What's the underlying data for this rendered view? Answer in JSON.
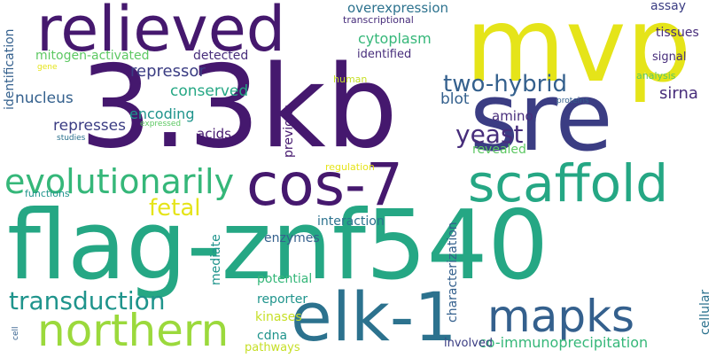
{
  "words": {
    "mvp": "mvp",
    "relieved": "relieved",
    "kb": "3.3kb",
    "sre": "sre",
    "cos7": "cos-7",
    "scaffold": "scaffold",
    "evolutionarily": "evolutionarily",
    "flagznf540": "flag-znf540",
    "elk1": "elk-1",
    "mapks": "mapks",
    "northern": "northern",
    "transduction": "transduction",
    "fetal": "fetal",
    "yeast": "yeast",
    "twohybrid": "two-hybrid",
    "cytoplasm": "cytoplasm",
    "repressor": "repressor",
    "conserved": "conserved",
    "encoding": "encoding",
    "nucleus": "nucleus",
    "represses": "represses",
    "acids": "acids",
    "amino": "amino",
    "blot": "blot",
    "sirna": "sirna",
    "revealed": "revealed",
    "previous": "previous",
    "detected": "detected",
    "identified": "identified",
    "overexpression": "overexpression",
    "transcriptional": "transcriptional",
    "assay": "assay",
    "tissues": "tissues",
    "signal": "signal",
    "analysis": "analysis",
    "mitogenactivated": "mitogen-activated",
    "identification": "identification",
    "gene": "gene",
    "human": "human",
    "proteins": "proteins",
    "studies": "studies",
    "expressed": "expressed",
    "regulation": "regulation",
    "functions": "functions",
    "interaction": "interaction",
    "enzymes": "enzymes",
    "mediate": "mediate",
    "potential": "potential",
    "reporter": "reporter",
    "kinases": "kinases",
    "cdna": "cdna",
    "pathways": "pathways",
    "characterization": "characterization",
    "coimmunoprecipitation": "co-immunoprecipitation",
    "involved": "involved",
    "cellular": "cellular",
    "cell": "cell"
  },
  "palette": [
    "#45186e",
    "#472d7b",
    "#3b3d83",
    "#34608d",
    "#2c728e",
    "#1f948c",
    "#25a784",
    "#35b779",
    "#5dc863",
    "#9bd93c",
    "#c6df26",
    "#e5e419"
  ]
}
